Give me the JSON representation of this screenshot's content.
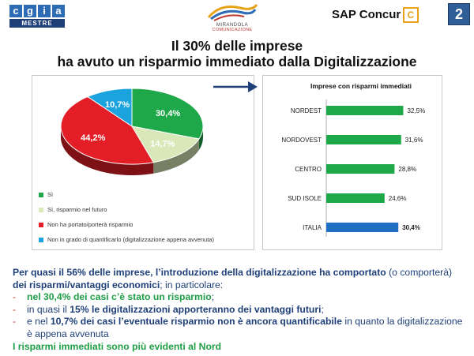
{
  "header": {
    "logo_left_letters": [
      "c",
      "g",
      "i",
      "a"
    ],
    "logo_left_sub": "MESTRE",
    "logo_center_line1": "MIRANDOLA",
    "logo_center_line2": "COMUNICAZIONE",
    "brand": "SAP Concur",
    "brand_icon": "C",
    "slide_number": "2"
  },
  "title_line1": "Il 30% delle imprese",
  "title_line2": "ha avuto un risparmio immediato dalla Digitalizzazione",
  "chart_data": [
    {
      "type": "pie",
      "slices": [
        {
          "label": "Sì",
          "value": 30.4,
          "display": "30,4%",
          "color": "#1fa84a"
        },
        {
          "label": "Sì, risparmio nel futuro",
          "value": 14.7,
          "display": "14,7%",
          "color": "#d9e8b8"
        },
        {
          "label": "Non ha portato/porterà risparmio",
          "value": 44.2,
          "display": "44,2%",
          "color": "#e41e26"
        },
        {
          "label": "Non in grado di quantificarlo (digitalizzazione appena avvenuta)",
          "value": 10.7,
          "display": "10,7%",
          "color": "#1aa3dd"
        }
      ],
      "legend_position": "bottom-left"
    },
    {
      "type": "bar",
      "orientation": "horizontal",
      "title": "Imprese con risparmi immediati",
      "categories": [
        "NORDEST",
        "NORDOVEST",
        "CENTRO",
        "SUD ISOLE",
        "ITALIA"
      ],
      "values": [
        32.5,
        31.6,
        28.8,
        24.6,
        30.4
      ],
      "labels": [
        "32,5%",
        "31,6%",
        "28,8%",
        "24,6%",
        "30,4%"
      ],
      "colors": [
        "#1fa84a",
        "#1fa84a",
        "#1fa84a",
        "#1fa84a",
        "#1f6fc2"
      ],
      "xlim": [
        0,
        40
      ]
    }
  ],
  "text": {
    "p1_a": "Per quasi il 56% delle imprese, l’introduzione della digitalizzazione ha comportato",
    "p1_b": " (o comporterà) ",
    "p1_c": "dei risparmi/vantaggi economici",
    "p1_d": "; in particolare:",
    "b1_dash": "-",
    "b1_a": "nel 30,4% dei casi c’è stato un risparmio",
    "b1_b": ";",
    "b2_dash": "-",
    "b2_a": "in quasi il ",
    "b2_b": "15% le digitalizzazioni apporteranno dei vantaggi futuri",
    "b2_c": ";",
    "b3_dash": "-",
    "b3_a": "e nel ",
    "b3_b": "10,7% dei casi l’eventuale risparmio non è ancora quantificabile",
    "b3_c": " in quanto la digitalizzazione è appena avvenuta",
    "conclusion": "I risparmi immediati sono più evidenti al Nord"
  }
}
